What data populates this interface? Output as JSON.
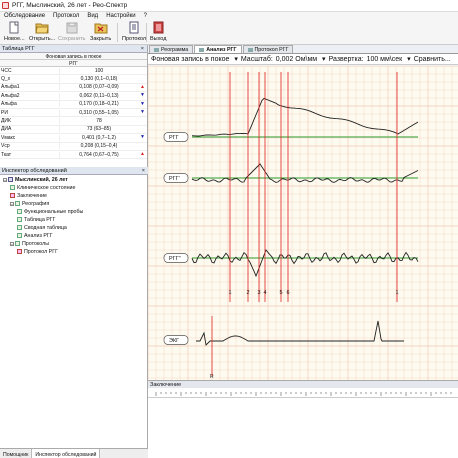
{
  "window": {
    "title": "РГГ, Мыслинский, 26 лет - Рео-Спектр"
  },
  "menu": [
    "Обследование",
    "Протокол",
    "Вид",
    "Настройки",
    "?"
  ],
  "toolbar": {
    "new": "Новое...",
    "open": "Открыть...",
    "save": "Сохранить",
    "close": "Закрыть",
    "protocol": "Протокол",
    "exit": "Выход"
  },
  "left_panel": {
    "table_title": "Таблица РГГ",
    "header1": "Фоновая запись в покое",
    "header2": "РГГ",
    "rows": [
      {
        "name": "ЧСС",
        "value": "100",
        "mark": ""
      },
      {
        "name": "Q_x",
        "value": "0,130 (0,1–0,18)",
        "mark": ""
      },
      {
        "name": "Альфа1",
        "value": "0,108 (0,07–0,09)",
        "mark": "▲"
      },
      {
        "name": "Альфа2",
        "value": "0,062 (0,11–0,13)",
        "mark": "▼"
      },
      {
        "name": "Альфа",
        "value": "0,170 (0,18–0,21)",
        "mark": "▼"
      },
      {
        "name": "РИ",
        "value": "0,310 (0,55–1,05)",
        "mark": "▼"
      },
      {
        "name": "ДИК",
        "value": "78",
        "mark": ""
      },
      {
        "name": "ДИА",
        "value": "73 (63–85)",
        "mark": ""
      },
      {
        "name": "Vмакс",
        "value": "0,401 (0,7–1,2)",
        "mark": "▼"
      },
      {
        "name": "Vср",
        "value": "0,208 (0,15–0,4)",
        "mark": ""
      },
      {
        "name": "Ткат",
        "value": "0,764 (0,67–0,75)",
        "mark": "▲"
      }
    ],
    "inspector_title": "Инспектор обследований",
    "tree": [
      {
        "label": "Мыслинский, 26 лет",
        "level": 0,
        "bold": true,
        "icon": "patient-icon"
      },
      {
        "label": "Клиническое состояние",
        "level": 1,
        "icon": "document-icon"
      },
      {
        "label": "Заключение",
        "level": 1,
        "icon": "pen-icon"
      },
      {
        "label": "Реография",
        "level": 1,
        "icon": "folder-icon"
      },
      {
        "label": "Функциональные пробы",
        "level": 2,
        "icon": "probe-icon"
      },
      {
        "label": "Таблица РГГ",
        "level": 2,
        "icon": "table-icon"
      },
      {
        "label": "Сводная таблица",
        "level": 2,
        "icon": "table-icon"
      },
      {
        "label": "Анализ РГГ",
        "level": 2,
        "icon": "chart-icon"
      },
      {
        "label": "Протоколы",
        "level": 1,
        "icon": "folder-icon"
      },
      {
        "label": "Протокол РГГ",
        "level": 2,
        "icon": "protocol-icon"
      }
    ],
    "bottom_tabs": [
      "Помощник",
      "Инспектор обследований"
    ]
  },
  "right_tabs": [
    "Реограмма",
    "Анализ РГГ",
    "Протокол РГГ"
  ],
  "controls": {
    "record": "Фоновая запись в покое",
    "scale_label": "Масштаб:",
    "scale_value": "0,002 Ом\\мм",
    "sweep_label": "Развертка:",
    "sweep_value": "100 мм\\сек",
    "compare": "Сравнить..."
  },
  "channels": [
    "РГГ",
    "РГГ'",
    "РГГ''",
    "ЭКГ"
  ],
  "markers": [
    "1",
    "2",
    "3",
    "4",
    "5",
    "6",
    "1"
  ],
  "ecg_marker": "R",
  "conclusion_title": "Заключение",
  "colors": {
    "marker": "#e02020",
    "baseline": "#2a9a2a",
    "grid": "#f2c8b8",
    "trace": "#222222"
  }
}
